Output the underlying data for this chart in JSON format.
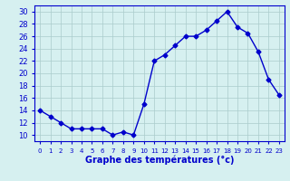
{
  "hours": [
    0,
    1,
    2,
    3,
    4,
    5,
    6,
    7,
    8,
    9,
    10,
    11,
    12,
    13,
    14,
    15,
    16,
    17,
    18,
    19,
    20,
    21,
    22,
    23
  ],
  "temps": [
    14,
    13,
    12,
    11,
    11,
    11,
    11,
    10,
    10.5,
    10,
    15,
    22,
    23,
    24.5,
    26,
    26,
    27,
    28.5,
    30,
    27.5,
    26.5,
    23.5,
    19,
    16.5
  ],
  "line_color": "#0000cc",
  "marker": "D",
  "marker_size": 2.5,
  "bg_color": "#d6f0f0",
  "grid_color": "#aacccc",
  "xlabel": "Graphe des températures (°c)",
  "xlabel_color": "#0000cc",
  "tick_color": "#0000cc",
  "xlim": [
    -0.5,
    23.5
  ],
  "ylim": [
    9,
    31
  ],
  "yticks": [
    10,
    12,
    14,
    16,
    18,
    20,
    22,
    24,
    26,
    28,
    30
  ],
  "xtick_labels": [
    "0",
    "1",
    "2",
    "3",
    "4",
    "5",
    "6",
    "7",
    "8",
    "9",
    "10",
    "11",
    "12",
    "13",
    "14",
    "15",
    "16",
    "17",
    "18",
    "19",
    "20",
    "21",
    "22",
    "23"
  ]
}
